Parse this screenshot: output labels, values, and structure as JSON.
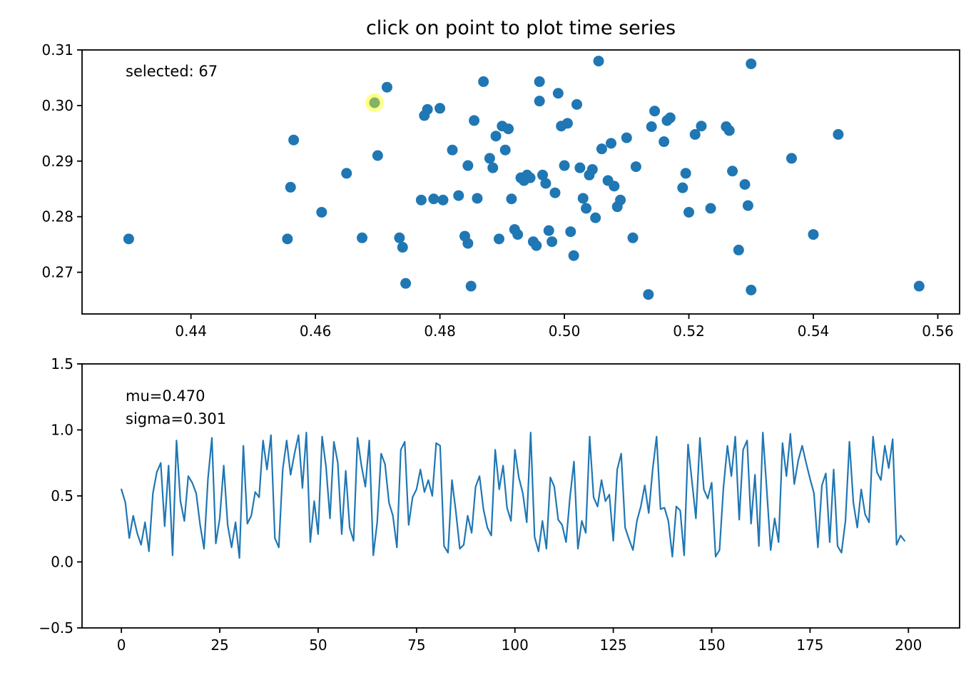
{
  "title": "click on point to plot time series",
  "chart_data": [
    {
      "type": "scatter",
      "title": "click on point to plot time series",
      "annotation": "selected: 67",
      "selected_display_index": 67,
      "marker_color": "#1f77b4",
      "highlight_color": "#ffff00",
      "grid": false,
      "xlim": [
        0.4225,
        0.5635
      ],
      "ylim": [
        0.2625,
        0.31
      ],
      "xtick_values": [
        0.44,
        0.46,
        0.48,
        0.5,
        0.52,
        0.54,
        0.56
      ],
      "xtick_labels": [
        "0.44",
        "0.46",
        "0.48",
        "0.50",
        "0.52",
        "0.54",
        "0.56"
      ],
      "ytick_values": [
        0.27,
        0.28,
        0.29,
        0.3,
        0.31
      ],
      "ytick_labels": [
        "0.27",
        "0.28",
        "0.29",
        "0.30",
        "0.31"
      ],
      "selected_point": [
        0.4695,
        0.3005
      ],
      "points": [
        [
          0.43,
          0.276
        ],
        [
          0.4555,
          0.276
        ],
        [
          0.456,
          0.2853
        ],
        [
          0.4565,
          0.2938
        ],
        [
          0.461,
          0.2808
        ],
        [
          0.465,
          0.2878
        ],
        [
          0.4675,
          0.2762
        ],
        [
          0.4695,
          0.3005
        ],
        [
          0.47,
          0.291
        ],
        [
          0.4715,
          0.3033
        ],
        [
          0.4735,
          0.2762
        ],
        [
          0.474,
          0.2745
        ],
        [
          0.4745,
          0.268
        ],
        [
          0.477,
          0.283
        ],
        [
          0.4775,
          0.2982
        ],
        [
          0.478,
          0.2993
        ],
        [
          0.479,
          0.2832
        ],
        [
          0.48,
          0.2995
        ],
        [
          0.4805,
          0.283
        ],
        [
          0.482,
          0.292
        ],
        [
          0.483,
          0.2838
        ],
        [
          0.484,
          0.2765
        ],
        [
          0.4845,
          0.2752
        ],
        [
          0.4845,
          0.2892
        ],
        [
          0.485,
          0.2675
        ],
        [
          0.4855,
          0.2973
        ],
        [
          0.486,
          0.2833
        ],
        [
          0.487,
          0.3043
        ],
        [
          0.488,
          0.2905
        ],
        [
          0.4885,
          0.2888
        ],
        [
          0.489,
          0.2945
        ],
        [
          0.4895,
          0.276
        ],
        [
          0.49,
          0.2963
        ],
        [
          0.4905,
          0.292
        ],
        [
          0.491,
          0.2958
        ],
        [
          0.4915,
          0.2832
        ],
        [
          0.492,
          0.2777
        ],
        [
          0.4925,
          0.2768
        ],
        [
          0.493,
          0.287
        ],
        [
          0.4935,
          0.2865
        ],
        [
          0.494,
          0.2875
        ],
        [
          0.4945,
          0.287
        ],
        [
          0.495,
          0.2755
        ],
        [
          0.4955,
          0.2748
        ],
        [
          0.496,
          0.3043
        ],
        [
          0.496,
          0.3008
        ],
        [
          0.4965,
          0.2875
        ],
        [
          0.497,
          0.286
        ],
        [
          0.4975,
          0.2775
        ],
        [
          0.498,
          0.2755
        ],
        [
          0.4985,
          0.2843
        ],
        [
          0.499,
          0.3022
        ],
        [
          0.4995,
          0.2963
        ],
        [
          0.5,
          0.2892
        ],
        [
          0.5005,
          0.2968
        ],
        [
          0.501,
          0.2773
        ],
        [
          0.5015,
          0.273
        ],
        [
          0.502,
          0.3002
        ],
        [
          0.5025,
          0.2888
        ],
        [
          0.503,
          0.2833
        ],
        [
          0.5035,
          0.2815
        ],
        [
          0.504,
          0.2875
        ],
        [
          0.5045,
          0.2885
        ],
        [
          0.505,
          0.2798
        ],
        [
          0.5055,
          0.308
        ],
        [
          0.506,
          0.2922
        ],
        [
          0.507,
          0.2865
        ],
        [
          0.5075,
          0.2932
        ],
        [
          0.508,
          0.2855
        ],
        [
          0.5085,
          0.2818
        ],
        [
          0.509,
          0.283
        ],
        [
          0.51,
          0.2942
        ],
        [
          0.511,
          0.2762
        ],
        [
          0.5115,
          0.289
        ],
        [
          0.5135,
          0.266
        ],
        [
          0.514,
          0.2962
        ],
        [
          0.5145,
          0.299
        ],
        [
          0.516,
          0.2935
        ],
        [
          0.5165,
          0.2973
        ],
        [
          0.517,
          0.2978
        ],
        [
          0.519,
          0.2852
        ],
        [
          0.5195,
          0.2878
        ],
        [
          0.52,
          0.2808
        ],
        [
          0.521,
          0.2948
        ],
        [
          0.522,
          0.2963
        ],
        [
          0.5235,
          0.2815
        ],
        [
          0.526,
          0.2962
        ],
        [
          0.5265,
          0.2955
        ],
        [
          0.527,
          0.2882
        ],
        [
          0.528,
          0.274
        ],
        [
          0.529,
          0.2858
        ],
        [
          0.5295,
          0.282
        ],
        [
          0.53,
          0.3075
        ],
        [
          0.53,
          0.2668
        ],
        [
          0.5365,
          0.2905
        ],
        [
          0.54,
          0.2768
        ],
        [
          0.544,
          0.2948
        ],
        [
          0.557,
          0.2675
        ]
      ]
    },
    {
      "type": "line",
      "annotations": [
        "mu=0.470",
        "sigma=0.301"
      ],
      "line_color": "#1f77b4",
      "grid": false,
      "xlim": [
        -10,
        213
      ],
      "ylim": [
        -0.5,
        1.5
      ],
      "xtick_values": [
        0,
        25,
        50,
        75,
        100,
        125,
        150,
        175,
        200
      ],
      "xtick_labels": [
        "0",
        "25",
        "50",
        "75",
        "100",
        "125",
        "150",
        "175",
        "200"
      ],
      "ytick_values": [
        -0.5,
        0.0,
        0.5,
        1.0,
        1.5
      ],
      "ytick_labels": [
        "−0.5",
        "0.0",
        "0.5",
        "1.0",
        "1.5"
      ],
      "values": [
        0.55,
        0.45,
        0.18,
        0.35,
        0.22,
        0.13,
        0.3,
        0.08,
        0.52,
        0.68,
        0.75,
        0.27,
        0.73,
        0.05,
        0.92,
        0.46,
        0.31,
        0.65,
        0.6,
        0.52,
        0.28,
        0.1,
        0.63,
        0.94,
        0.14,
        0.33,
        0.73,
        0.28,
        0.11,
        0.3,
        0.03,
        0.88,
        0.29,
        0.35,
        0.53,
        0.49,
        0.92,
        0.7,
        0.96,
        0.18,
        0.11,
        0.7,
        0.92,
        0.66,
        0.82,
        0.96,
        0.56,
        0.98,
        0.15,
        0.46,
        0.21,
        0.95,
        0.72,
        0.33,
        0.91,
        0.75,
        0.21,
        0.69,
        0.26,
        0.16,
        0.94,
        0.73,
        0.57,
        0.92,
        0.05,
        0.3,
        0.82,
        0.74,
        0.45,
        0.35,
        0.11,
        0.85,
        0.91,
        0.28,
        0.49,
        0.55,
        0.7,
        0.53,
        0.62,
        0.5,
        0.9,
        0.88,
        0.12,
        0.07,
        0.62,
        0.38,
        0.1,
        0.13,
        0.35,
        0.22,
        0.57,
        0.65,
        0.4,
        0.26,
        0.2,
        0.85,
        0.55,
        0.73,
        0.41,
        0.31,
        0.85,
        0.64,
        0.52,
        0.3,
        0.98,
        0.19,
        0.08,
        0.31,
        0.1,
        0.64,
        0.57,
        0.32,
        0.28,
        0.15,
        0.49,
        0.76,
        0.1,
        0.31,
        0.22,
        0.95,
        0.49,
        0.42,
        0.62,
        0.46,
        0.51,
        0.16,
        0.7,
        0.82,
        0.26,
        0.17,
        0.09,
        0.31,
        0.42,
        0.58,
        0.37,
        0.7,
        0.95,
        0.4,
        0.41,
        0.31,
        0.04,
        0.42,
        0.39,
        0.05,
        0.89,
        0.61,
        0.33,
        0.94,
        0.55,
        0.48,
        0.6,
        0.04,
        0.09,
        0.57,
        0.88,
        0.65,
        0.95,
        0.32,
        0.85,
        0.92,
        0.29,
        0.66,
        0.12,
        0.98,
        0.55,
        0.09,
        0.33,
        0.15,
        0.9,
        0.65,
        0.97,
        0.59,
        0.77,
        0.88,
        0.75,
        0.63,
        0.52,
        0.11,
        0.58,
        0.67,
        0.15,
        0.7,
        0.12,
        0.07,
        0.31,
        0.91,
        0.45,
        0.26,
        0.55,
        0.36,
        0.3,
        0.95,
        0.68,
        0.62,
        0.88,
        0.71,
        0.93,
        0.13,
        0.2,
        0.16
      ]
    }
  ]
}
